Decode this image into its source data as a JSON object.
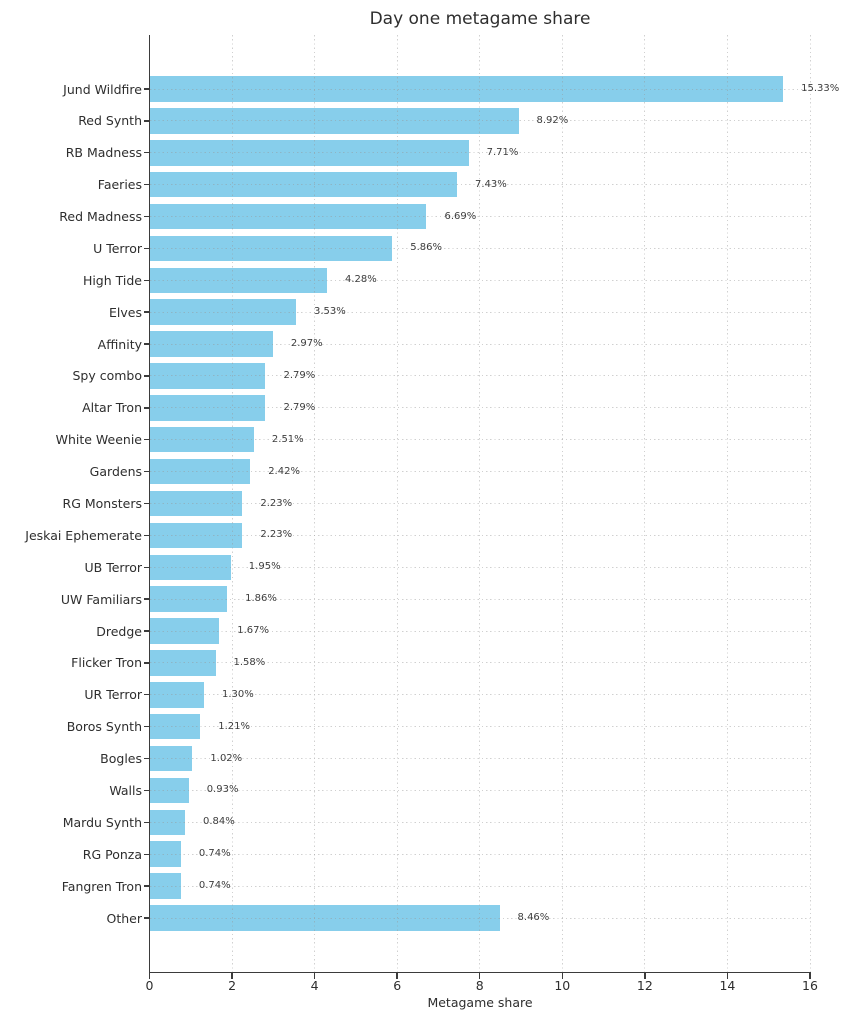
{
  "chart_data": {
    "type": "bar",
    "orientation": "horizontal",
    "title": "Day one metagame share",
    "xlabel": "Metagame share",
    "ylabel": "",
    "xlim": [
      0,
      16
    ],
    "xticks": [
      0,
      2,
      4,
      6,
      8,
      10,
      12,
      14,
      16
    ],
    "grid": true,
    "legend": false,
    "bar_color": "#87CEEB",
    "axis_color": "#3b3b3b",
    "grid_color": "rgba(150,150,150,0.45)",
    "text_color": "#2e2e2e",
    "categories": [
      "Jund Wildfire",
      "Red Synth",
      "RB Madness",
      "Faeries",
      "Red Madness",
      "U Terror",
      "High Tide",
      "Elves",
      "Affinity",
      "Spy combo",
      "Altar Tron",
      "White Weenie",
      "Gardens",
      "RG Monsters",
      "Jeskai Ephemerate",
      "UB Terror",
      "UW Familiars",
      "Dredge",
      "Flicker Tron",
      "UR Terror",
      "Boros Synth",
      "Bogles",
      "Walls",
      "Mardu Synth",
      "RG Ponza",
      "Fangren Tron",
      "Other"
    ],
    "values": [
      15.33,
      8.92,
      7.71,
      7.43,
      6.69,
      5.86,
      4.28,
      3.53,
      2.97,
      2.79,
      2.79,
      2.51,
      2.42,
      2.23,
      2.23,
      1.95,
      1.86,
      1.67,
      1.58,
      1.3,
      1.21,
      1.02,
      0.93,
      0.84,
      0.74,
      0.74,
      8.46
    ],
    "value_labels": [
      "15.33%",
      "8.92%",
      "7.71%",
      "7.43%",
      "6.69%",
      "5.86%",
      "4.28%",
      "3.53%",
      "2.97%",
      "2.79%",
      "2.79%",
      "2.51%",
      "2.42%",
      "2.23%",
      "2.23%",
      "1.95%",
      "1.86%",
      "1.67%",
      "1.58%",
      "1.30%",
      "1.21%",
      "1.02%",
      "0.93%",
      "0.84%",
      "0.74%",
      "0.74%",
      "8.46%"
    ]
  }
}
